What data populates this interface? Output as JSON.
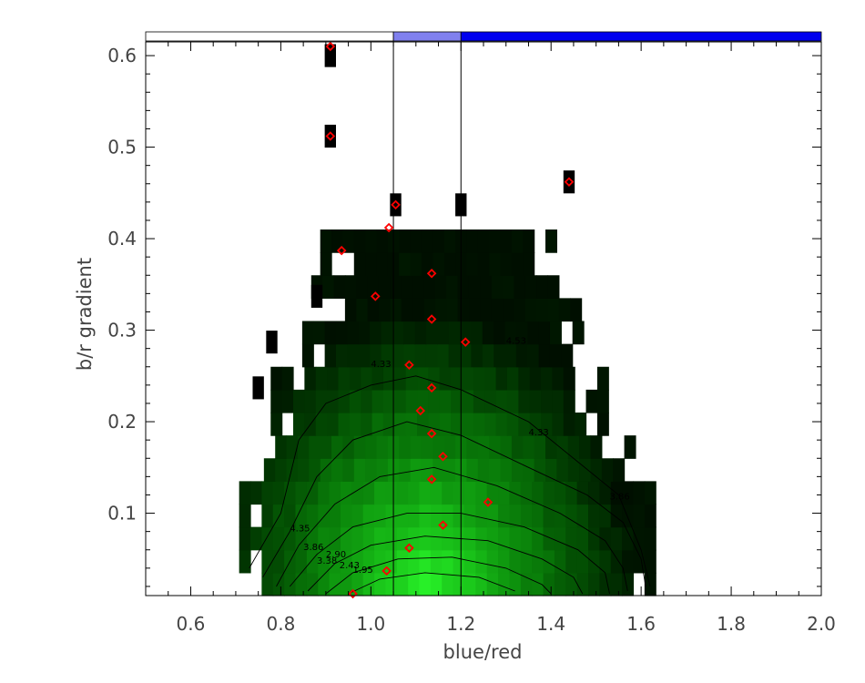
{
  "chart_data": {
    "type": "heatmap",
    "title": "",
    "xlabel": "blue/red",
    "ylabel": "b/r gradient",
    "xlim": [
      0.5,
      2.0
    ],
    "ylim": [
      0.01,
      0.615
    ],
    "xticks": [
      "0.6",
      "0.8",
      "1.0",
      "1.2",
      "1.4",
      "1.6",
      "1.8",
      "2.0"
    ],
    "xtick_values": [
      0.6,
      0.8,
      1.0,
      1.2,
      1.4,
      1.6,
      1.8,
      2.0
    ],
    "yticks": [
      "0.1",
      "0.2",
      "0.3",
      "0.4",
      "0.5",
      "0.6"
    ],
    "ytick_values": [
      0.1,
      0.2,
      0.3,
      0.4,
      0.5,
      0.6
    ],
    "vertical_lines": [
      1.05,
      1.2
    ],
    "color_bar": [
      {
        "from": 0.5,
        "to": 1.05,
        "color": "#ffffff"
      },
      {
        "from": 1.05,
        "to": 1.2,
        "color": "#8080ee"
      },
      {
        "from": 1.2,
        "to": 2.0,
        "color": "#0000ee"
      }
    ],
    "peak": {
      "x": 1.1,
      "y": 0.035
    },
    "contour_labels": [
      {
        "text": "3.86",
        "x": 1.53,
        "y": 0.115
      },
      {
        "text": "3.86",
        "x": 0.85,
        "y": 0.06
      },
      {
        "text": "3.38",
        "x": 0.88,
        "y": 0.045
      },
      {
        "text": "2.90",
        "x": 0.9,
        "y": 0.052
      },
      {
        "text": "2.43",
        "x": 0.93,
        "y": 0.04
      },
      {
        "text": "1.95",
        "x": 0.96,
        "y": 0.035
      },
      {
        "text": "4.35",
        "x": 0.82,
        "y": 0.08
      },
      {
        "text": "4.33",
        "x": 1.35,
        "y": 0.185
      },
      {
        "text": "4.33",
        "x": 1.0,
        "y": 0.26
      },
      {
        "text": "4.53",
        "x": 1.3,
        "y": 0.285
      }
    ],
    "contour_levels": [
      [
        [
          0.73,
          0.04
        ],
        [
          0.8,
          0.1
        ],
        [
          0.84,
          0.18
        ],
        [
          0.9,
          0.22
        ],
        [
          1.0,
          0.24
        ],
        [
          1.1,
          0.25
        ],
        [
          1.2,
          0.235
        ],
        [
          1.35,
          0.2
        ],
        [
          1.45,
          0.16
        ],
        [
          1.55,
          0.12
        ],
        [
          1.6,
          0.06
        ],
        [
          1.62,
          0.02
        ]
      ],
      [
        [
          0.76,
          0.03
        ],
        [
          0.82,
          0.08
        ],
        [
          0.88,
          0.14
        ],
        [
          0.96,
          0.18
        ],
        [
          1.08,
          0.2
        ],
        [
          1.2,
          0.185
        ],
        [
          1.35,
          0.15
        ],
        [
          1.48,
          0.12
        ],
        [
          1.56,
          0.09
        ],
        [
          1.6,
          0.05
        ],
        [
          1.61,
          0.02
        ]
      ],
      [
        [
          0.79,
          0.02
        ],
        [
          0.84,
          0.065
        ],
        [
          0.92,
          0.11
        ],
        [
          1.02,
          0.14
        ],
        [
          1.14,
          0.15
        ],
        [
          1.28,
          0.13
        ],
        [
          1.42,
          0.1
        ],
        [
          1.52,
          0.07
        ],
        [
          1.56,
          0.04
        ],
        [
          1.57,
          0.015
        ]
      ],
      [
        [
          0.82,
          0.02
        ],
        [
          0.88,
          0.055
        ],
        [
          0.96,
          0.085
        ],
        [
          1.08,
          0.1
        ],
        [
          1.2,
          0.1
        ],
        [
          1.34,
          0.085
        ],
        [
          1.46,
          0.06
        ],
        [
          1.52,
          0.035
        ],
        [
          1.53,
          0.012
        ]
      ],
      [
        [
          0.86,
          0.015
        ],
        [
          0.92,
          0.045
        ],
        [
          1.0,
          0.065
        ],
        [
          1.12,
          0.075
        ],
        [
          1.26,
          0.07
        ],
        [
          1.38,
          0.05
        ],
        [
          1.45,
          0.03
        ],
        [
          1.47,
          0.012
        ]
      ],
      [
        [
          0.9,
          0.012
        ],
        [
          0.96,
          0.035
        ],
        [
          1.06,
          0.05
        ],
        [
          1.18,
          0.052
        ],
        [
          1.3,
          0.04
        ],
        [
          1.38,
          0.022
        ],
        [
          1.4,
          0.012
        ]
      ],
      [
        [
          0.95,
          0.012
        ],
        [
          1.02,
          0.028
        ],
        [
          1.12,
          0.035
        ],
        [
          1.24,
          0.03
        ],
        [
          1.32,
          0.015
        ]
      ]
    ],
    "medians": [
      {
        "x": 0.91,
        "y": 0.61
      },
      {
        "x": 0.91,
        "y": 0.512
      },
      {
        "x": 1.44,
        "y": 0.462
      },
      {
        "x": 1.055,
        "y": 0.437
      },
      {
        "x": 1.04,
        "y": 0.412
      },
      {
        "x": 0.935,
        "y": 0.387
      },
      {
        "x": 1.135,
        "y": 0.362
      },
      {
        "x": 1.01,
        "y": 0.337
      },
      {
        "x": 1.135,
        "y": 0.312
      },
      {
        "x": 1.21,
        "y": 0.287
      },
      {
        "x": 1.085,
        "y": 0.262
      },
      {
        "x": 1.135,
        "y": 0.237
      },
      {
        "x": 1.11,
        "y": 0.212
      },
      {
        "x": 1.135,
        "y": 0.187
      },
      {
        "x": 1.16,
        "y": 0.162
      },
      {
        "x": 1.135,
        "y": 0.137
      },
      {
        "x": 1.26,
        "y": 0.112
      },
      {
        "x": 1.16,
        "y": 0.087
      },
      {
        "x": 1.085,
        "y": 0.062
      },
      {
        "x": 1.035,
        "y": 0.037
      },
      {
        "x": 0.96,
        "y": 0.012
      }
    ],
    "colors": {
      "marker": "#ff0000",
      "cell_dark": "#000000",
      "cell_bright": "#22ee22",
      "contour": "#000000",
      "axis": "#000000",
      "text": "#444444"
    }
  }
}
